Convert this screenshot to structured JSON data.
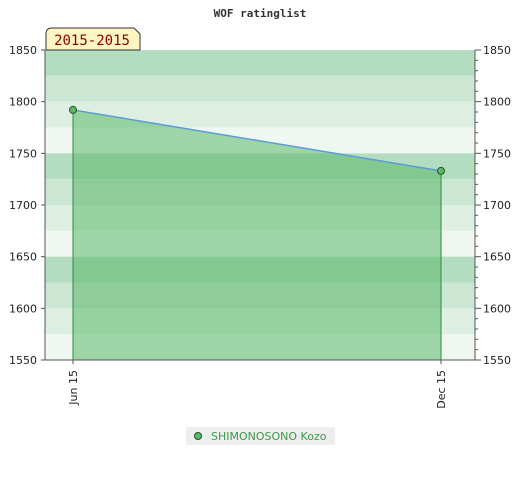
{
  "chart_data": {
    "type": "area",
    "title": "WOF ratinglist",
    "period_label": "2015-2015",
    "x": [
      "Jun 15",
      "Dec 15"
    ],
    "series": [
      {
        "name": "SHIMONOSONO Kozo",
        "values": [
          1792,
          1733
        ]
      }
    ],
    "ylim": [
      1550,
      1850
    ],
    "yticks": [
      1550,
      1600,
      1650,
      1700,
      1750,
      1800,
      1850
    ],
    "ylabel_left": "",
    "ylabel_right": "",
    "xlabel": "",
    "grid": true,
    "legend_position": "bottom-center",
    "colors": {
      "line": "#5b9bd5",
      "fill": "#5cb86a",
      "marker": "#3a8a45",
      "band_dark": "#a8d8b2",
      "band_light": "#eef8f0",
      "legend_text": "#3a9a4a",
      "badge_bg": "#fdf5c2",
      "badge_text": "#8b0000"
    }
  }
}
